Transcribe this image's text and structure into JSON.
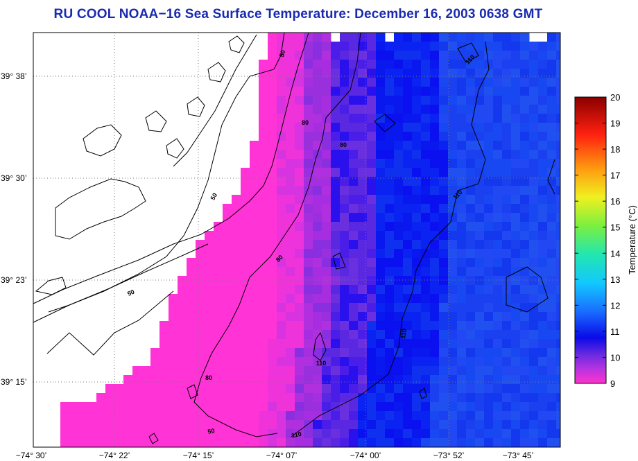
{
  "title": "RU COOL  NOAA−16  Sea Surface Temperature:  December 16, 2003 0638 GMT",
  "map": {
    "x_ticks": [
      "−74° 30’",
      "−74° 22’",
      "−74° 15’",
      "−74° 07’",
      "−74° 00’",
      "−73° 52’",
      "−73° 45’"
    ],
    "y_ticks": [
      "39° 38’",
      "39° 30’",
      "39° 23’",
      "39° 15’"
    ],
    "contour_labels": [
      "50",
      "50",
      "50",
      "50",
      "80",
      "80",
      "80",
      "80",
      "110",
      "110",
      "110",
      "110",
      "110"
    ]
  },
  "colorbar": {
    "label": "Temperature (°C)",
    "ticks": [
      "20",
      "19",
      "18",
      "17",
      "16",
      "15",
      "14",
      "13",
      "12",
      "11",
      "10",
      "9"
    ],
    "min": 9,
    "max": 20
  },
  "colors": {
    "title": "#1a2ab0",
    "land": "#ffffff",
    "coast": "#000000"
  }
}
